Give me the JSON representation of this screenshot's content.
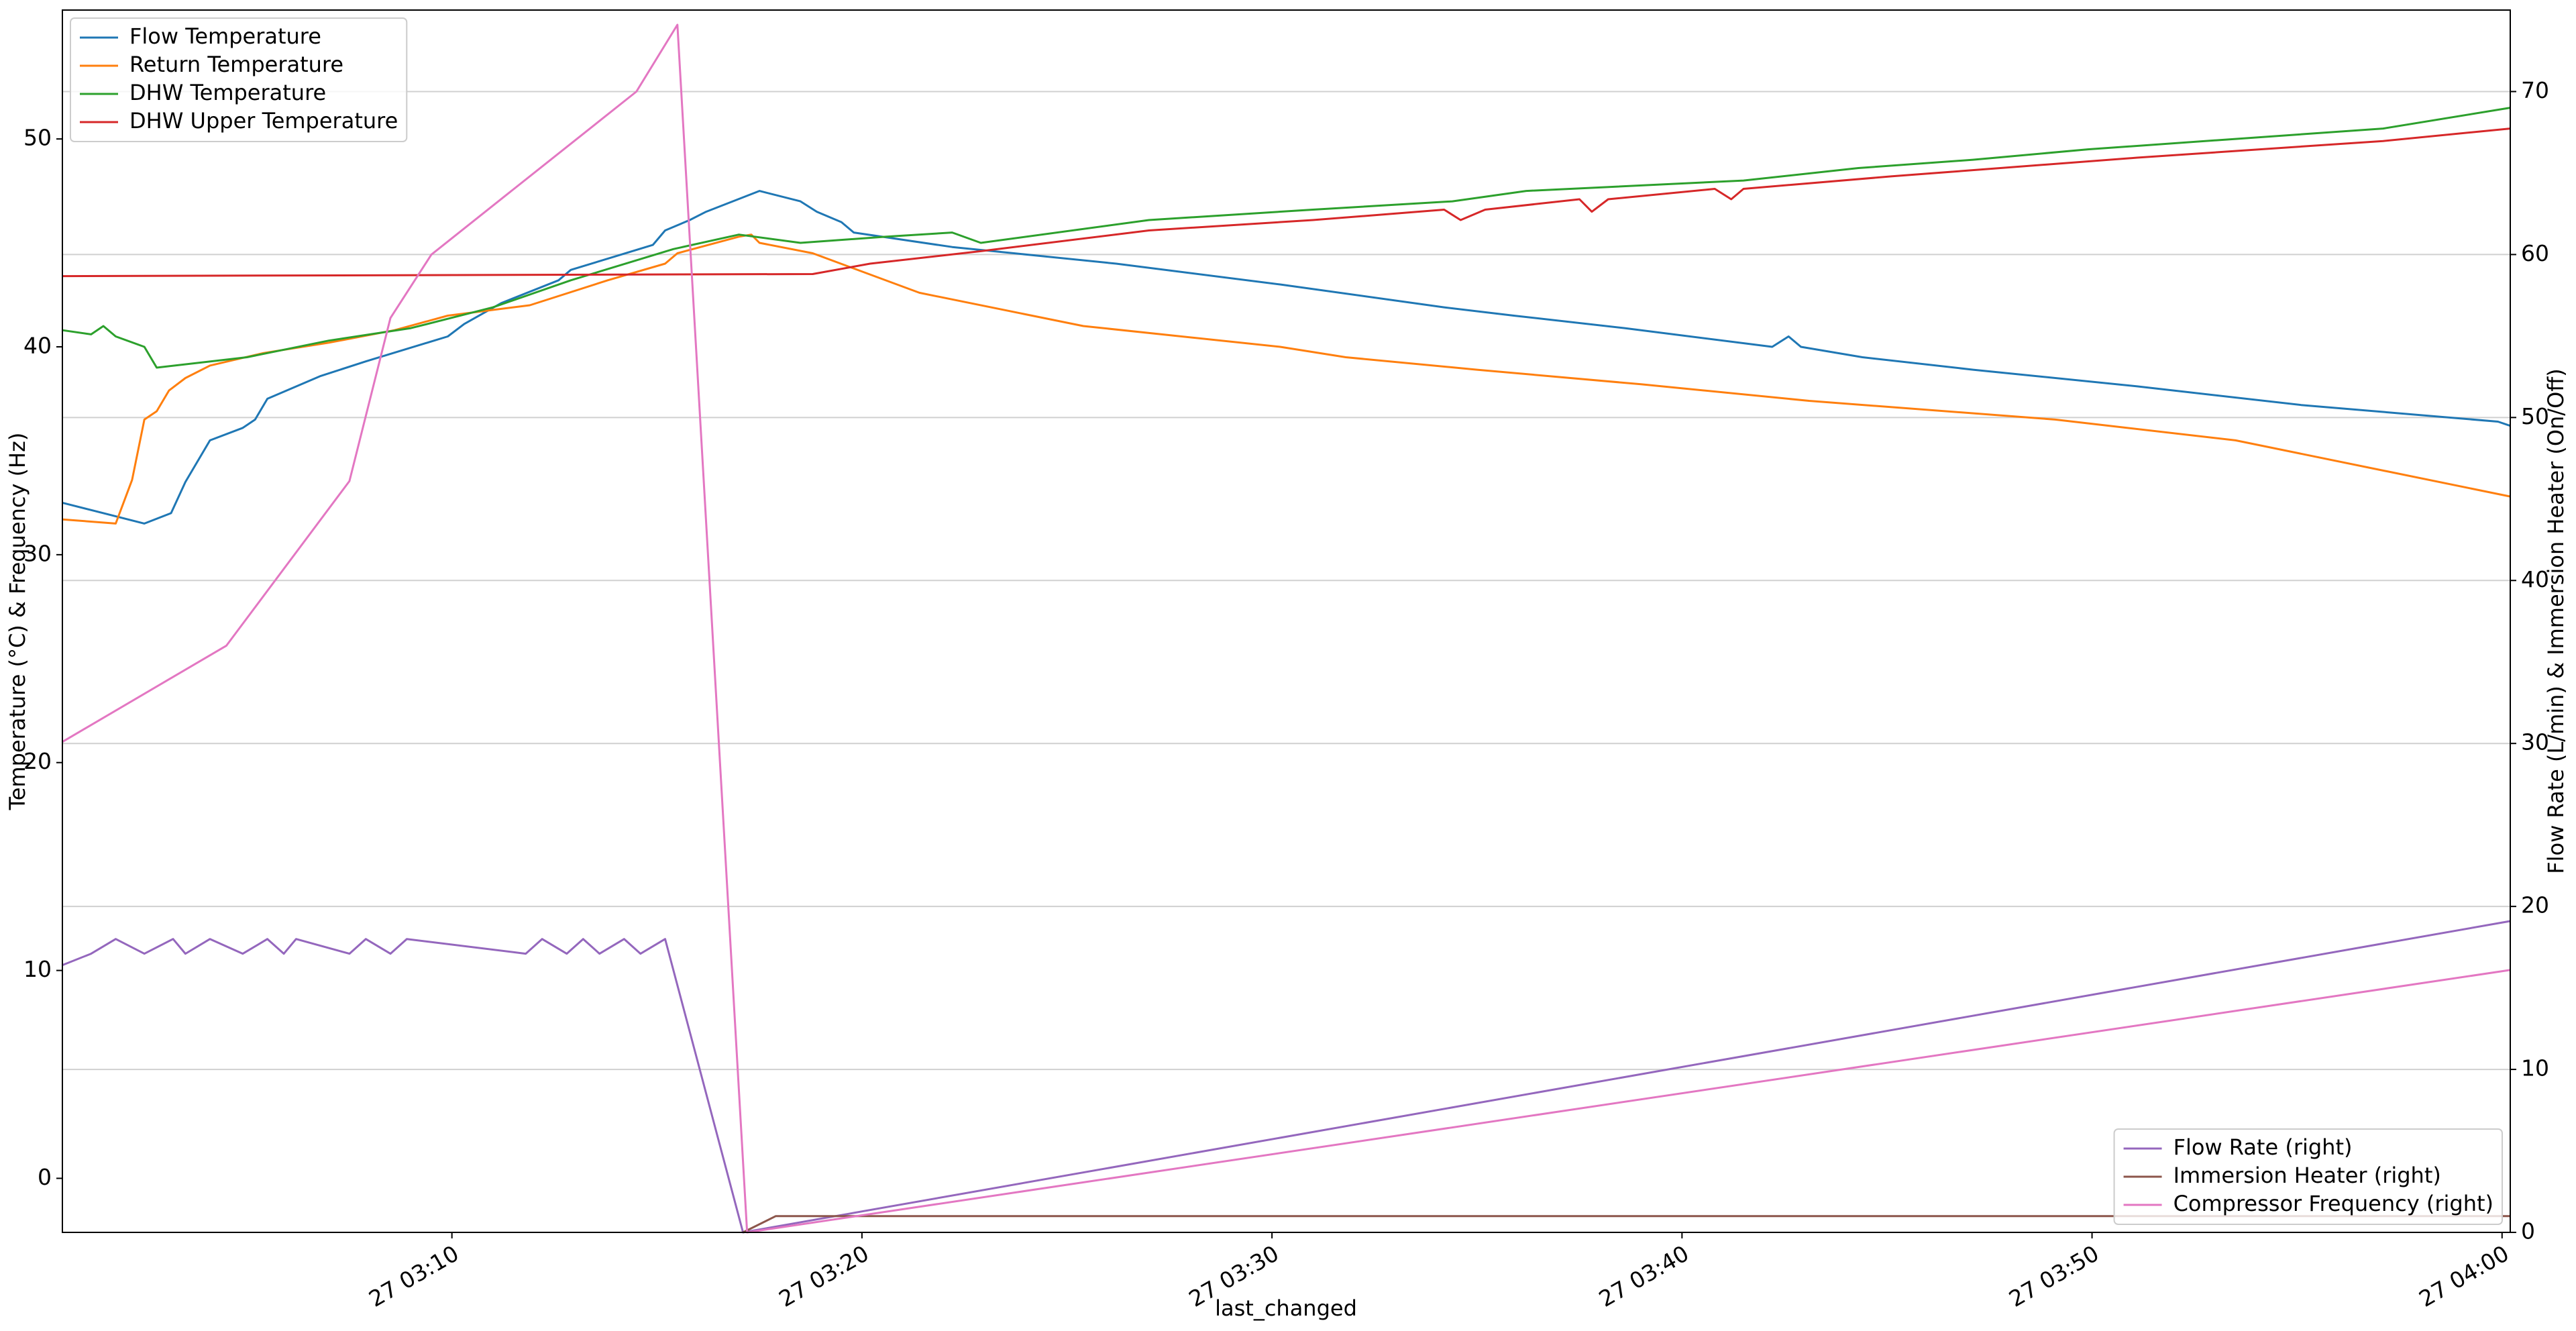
{
  "chart_data": {
    "type": "line",
    "xlabel": "last_changed",
    "ylabel": "Temperature (°C) & Frequency (Hz)",
    "y2label": "Flow Rate (L/min) & Immersion Heater (On/Off)",
    "xlim": [
      0.5,
      60.2
    ],
    "xticks": [
      {
        "value": 10,
        "label": "27 03:10"
      },
      {
        "value": 20,
        "label": "27 03:20"
      },
      {
        "value": 30,
        "label": "27 03:30"
      },
      {
        "value": 40,
        "label": "27 03:40"
      },
      {
        "value": 50,
        "label": "27 03:50"
      },
      {
        "value": 60,
        "label": "27 04:00"
      }
    ],
    "ylim": [
      -2.6,
      56.2
    ],
    "yticks": [
      0,
      10,
      20,
      30,
      40,
      50
    ],
    "y2lim": [
      0,
      75
    ],
    "y2ticks": [
      0,
      10,
      20,
      30,
      40,
      50,
      60,
      70
    ],
    "grid": "y2",
    "legend": {
      "y": "upper left",
      "y2": "lower right"
    },
    "series": [
      {
        "name": "Flow Temperature",
        "color": "#1f77b4",
        "axis": "y",
        "x": [
          0.5,
          2.5,
          3.15,
          3.5,
          4.1,
          4.9,
          5.2,
          5.5,
          6.8,
          7.9,
          9.9,
          10.3,
          11.2,
          12.6,
          12.9,
          14.9,
          15.2,
          15.8,
          16.2,
          17.5,
          18.5,
          18.9,
          19.5,
          19.8,
          22.2,
          26.2,
          30.2,
          34.2,
          35.9,
          38.6,
          42.2,
          42.6,
          42.9,
          44.4,
          47.1,
          51.1,
          55.1,
          59.9,
          60.2
        ],
        "values": [
          32.5,
          31.5,
          32.0,
          33.5,
          35.5,
          36.1,
          36.5,
          37.5,
          38.6,
          39.3,
          40.5,
          41.1,
          42.1,
          43.2,
          43.7,
          44.9,
          45.6,
          46.1,
          46.5,
          47.5,
          47.0,
          46.5,
          46.0,
          45.5,
          44.8,
          44.0,
          43.0,
          41.9,
          41.5,
          40.9,
          40.0,
          40.5,
          40.0,
          39.5,
          38.9,
          38.1,
          37.2,
          36.4,
          36.2
        ]
      },
      {
        "name": "Return Temperature",
        "color": "#ff7f0e",
        "axis": "y",
        "x": [
          0.5,
          1.8,
          2.2,
          2.5,
          2.8,
          3.1,
          3.5,
          4.1,
          5.4,
          7.0,
          8.6,
          9.9,
          11.9,
          13.8,
          15.2,
          15.5,
          17.0,
          17.3,
          17.5,
          18.8,
          21.4,
          25.4,
          30.2,
          31.8,
          35.0,
          39.0,
          43.1,
          49.1,
          53.5,
          60.2
        ],
        "values": [
          31.7,
          31.5,
          33.6,
          36.5,
          36.9,
          37.9,
          38.5,
          39.1,
          39.7,
          40.2,
          40.8,
          41.5,
          42.0,
          43.2,
          44.0,
          44.5,
          45.3,
          45.4,
          45.0,
          44.5,
          42.6,
          41.0,
          40.0,
          39.5,
          38.9,
          38.2,
          37.4,
          36.5,
          35.5,
          32.8
        ]
      },
      {
        "name": "DHW Temperature",
        "color": "#2ca02c",
        "axis": "y",
        "x": [
          0.5,
          1.2,
          1.5,
          1.8,
          2.5,
          2.8,
          5.0,
          7.0,
          9.0,
          11.0,
          12.9,
          15.4,
          17.0,
          18.5,
          20.6,
          22.2,
          22.9,
          27.0,
          31.0,
          34.4,
          36.2,
          41.5,
          44.3,
          47.1,
          49.9,
          53.5,
          57.1,
          60.2
        ],
        "values": [
          40.8,
          40.6,
          41.0,
          40.5,
          40.0,
          39.0,
          39.5,
          40.3,
          40.9,
          41.9,
          43.2,
          44.7,
          45.4,
          45.0,
          45.3,
          45.5,
          45.0,
          46.1,
          46.6,
          47.0,
          47.5,
          48.0,
          48.6,
          49.0,
          49.5,
          50.0,
          50.5,
          51.5
        ]
      },
      {
        "name": "DHW Upper Temperature",
        "color": "#d62728",
        "axis": "y",
        "x": [
          0.5,
          18.8,
          20.2,
          22.9,
          27.0,
          31.0,
          34.2,
          34.6,
          35.2,
          37.5,
          37.8,
          38.2,
          40.8,
          41.2,
          41.5,
          45.1,
          51.1,
          57.1,
          60.2
        ],
        "values": [
          43.4,
          43.5,
          44.0,
          44.6,
          45.6,
          46.1,
          46.6,
          46.1,
          46.6,
          47.1,
          46.5,
          47.1,
          47.6,
          47.1,
          47.6,
          48.2,
          49.1,
          49.9,
          50.5
        ]
      },
      {
        "name": "Flow Rate (right)",
        "color": "#9467bd",
        "axis": "y2",
        "x": [
          0.5,
          1.2,
          1.8,
          2.5,
          3.2,
          3.5,
          4.1,
          4.9,
          5.5,
          5.9,
          6.2,
          7.5,
          7.9,
          8.5,
          8.9,
          11.8,
          12.2,
          12.8,
          13.2,
          13.6,
          14.2,
          14.6,
          15.2,
          17.1,
          60.2
        ],
        "values": [
          16.4,
          17.1,
          18.0,
          17.1,
          18.0,
          17.1,
          18.0,
          17.1,
          18.0,
          17.1,
          18.0,
          17.1,
          18.0,
          17.1,
          18.0,
          17.1,
          18.0,
          17.1,
          18.0,
          17.1,
          18.0,
          17.1,
          18.0,
          0,
          19.1
        ]
      },
      {
        "name": "Immersion Heater (right)",
        "color": "#8c564b",
        "axis": "y2",
        "x": [
          17.1,
          17.9,
          60.2
        ],
        "values": [
          0,
          1.0,
          1.0
        ]
      },
      {
        "name": "Compressor Frequency (right)",
        "color": "#e377c2",
        "axis": "y2",
        "x": [
          0.5,
          4.5,
          7.5,
          8.5,
          9.5,
          14.5,
          15.5,
          17.2,
          60.2
        ],
        "values": [
          30.1,
          36.0,
          46.1,
          56.1,
          60.0,
          70.0,
          74.1,
          0,
          16.1
        ]
      }
    ]
  }
}
